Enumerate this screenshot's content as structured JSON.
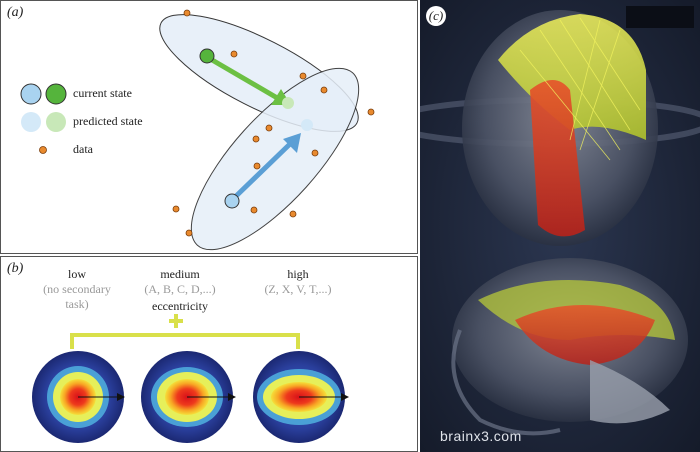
{
  "panel_a": {
    "label": "(a)",
    "legend": {
      "current_state": "current state",
      "predicted_state": "predicted state",
      "data": "data"
    },
    "colors": {
      "blue": "#a9d3f0",
      "green": "#55b43c",
      "orange": "#e98a2e",
      "ellipse": "#e6eff9"
    }
  },
  "panel_b": {
    "label": "(b)",
    "columns": [
      {
        "title": "low",
        "sub": "(no secondary task)"
      },
      {
        "title": "medium",
        "sub": "(A, B, C, D,...)"
      },
      {
        "title": "high",
        "sub": "(Z, X, V, T,...)"
      }
    ],
    "eccentricity": "eccentricity",
    "plus_color": "#d9e04a"
  },
  "panel_c": {
    "label": "(c)",
    "watermark": "brainx3.com"
  }
}
